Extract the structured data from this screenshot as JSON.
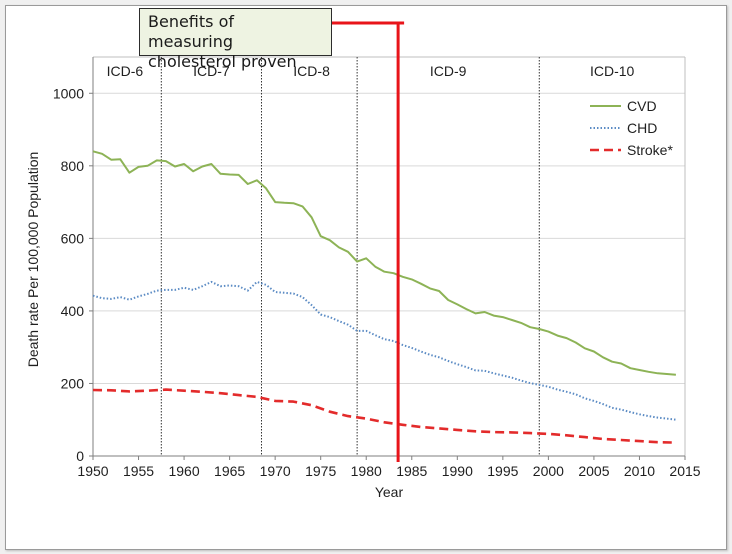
{
  "chart_data": {
    "type": "line",
    "title": "",
    "xlabel": "Year",
    "ylabel": "Death rate Per 100,000 Population",
    "xlim": [
      1950,
      2015
    ],
    "ylim": [
      0,
      1100
    ],
    "xticks": [
      "1950",
      "1955",
      "1960",
      "1965",
      "1970",
      "1975",
      "1980",
      "1985",
      "1990",
      "1995",
      "2000",
      "2005",
      "2010",
      "2015"
    ],
    "yticks": [
      "0",
      "200",
      "400",
      "600",
      "800",
      "1000"
    ],
    "grid": "horizontal",
    "legend_position": "top-right",
    "series": [
      {
        "name": "CVD",
        "color": "#8db356",
        "style": "solid",
        "points": [
          [
            1950,
            840
          ],
          [
            1951,
            833
          ],
          [
            1952,
            817
          ],
          [
            1953,
            818
          ],
          [
            1954,
            781
          ],
          [
            1955,
            797
          ],
          [
            1956,
            800
          ],
          [
            1957,
            815
          ],
          [
            1958,
            813
          ],
          [
            1959,
            798
          ],
          [
            1960,
            805
          ],
          [
            1961,
            785
          ],
          [
            1962,
            798
          ],
          [
            1963,
            805
          ],
          [
            1964,
            778
          ],
          [
            1965,
            776
          ],
          [
            1966,
            775
          ],
          [
            1967,
            750
          ],
          [
            1968,
            760
          ],
          [
            1969,
            738
          ],
          [
            1970,
            700
          ],
          [
            1971,
            698
          ],
          [
            1972,
            697
          ],
          [
            1973,
            688
          ],
          [
            1974,
            658
          ],
          [
            1975,
            606
          ],
          [
            1976,
            595
          ],
          [
            1977,
            575
          ],
          [
            1978,
            563
          ],
          [
            1979,
            536
          ],
          [
            1980,
            545
          ],
          [
            1981,
            522
          ],
          [
            1982,
            508
          ],
          [
            1983,
            504
          ],
          [
            1984,
            494
          ],
          [
            1985,
            487
          ],
          [
            1986,
            475
          ],
          [
            1987,
            462
          ],
          [
            1988,
            455
          ],
          [
            1989,
            430
          ],
          [
            1990,
            418
          ],
          [
            1991,
            405
          ],
          [
            1992,
            393
          ],
          [
            1993,
            397
          ],
          [
            1994,
            387
          ],
          [
            1995,
            383
          ],
          [
            1996,
            375
          ],
          [
            1997,
            367
          ],
          [
            1998,
            355
          ],
          [
            1999,
            350
          ],
          [
            2000,
            343
          ],
          [
            2001,
            332
          ],
          [
            2002,
            325
          ],
          [
            2003,
            313
          ],
          [
            2004,
            297
          ],
          [
            2005,
            288
          ],
          [
            2006,
            272
          ],
          [
            2007,
            260
          ],
          [
            2008,
            255
          ],
          [
            2009,
            242
          ],
          [
            2010,
            237
          ],
          [
            2011,
            232
          ],
          [
            2012,
            228
          ],
          [
            2013,
            226
          ],
          [
            2014,
            224
          ]
        ]
      },
      {
        "name": "CHD",
        "color": "#5b8bc4",
        "style": "dotted",
        "points": [
          [
            1950,
            442
          ],
          [
            1951,
            435
          ],
          [
            1952,
            433
          ],
          [
            1953,
            438
          ],
          [
            1954,
            431
          ],
          [
            1955,
            440
          ],
          [
            1956,
            447
          ],
          [
            1957,
            456
          ],
          [
            1958,
            458
          ],
          [
            1959,
            458
          ],
          [
            1960,
            464
          ],
          [
            1961,
            458
          ],
          [
            1962,
            468
          ],
          [
            1963,
            480
          ],
          [
            1964,
            468
          ],
          [
            1965,
            470
          ],
          [
            1966,
            468
          ],
          [
            1967,
            456
          ],
          [
            1968,
            480
          ],
          [
            1969,
            472
          ],
          [
            1970,
            452
          ],
          [
            1971,
            450
          ],
          [
            1972,
            448
          ],
          [
            1973,
            438
          ],
          [
            1974,
            416
          ],
          [
            1975,
            390
          ],
          [
            1976,
            383
          ],
          [
            1977,
            372
          ],
          [
            1978,
            362
          ],
          [
            1979,
            345
          ],
          [
            1980,
            345
          ],
          [
            1981,
            333
          ],
          [
            1982,
            322
          ],
          [
            1983,
            317
          ],
          [
            1984,
            306
          ],
          [
            1985,
            298
          ],
          [
            1986,
            288
          ],
          [
            1987,
            279
          ],
          [
            1988,
            272
          ],
          [
            1989,
            262
          ],
          [
            1990,
            253
          ],
          [
            1991,
            245
          ],
          [
            1992,
            236
          ],
          [
            1993,
            235
          ],
          [
            1994,
            228
          ],
          [
            1995,
            222
          ],
          [
            1996,
            216
          ],
          [
            1997,
            208
          ],
          [
            1998,
            201
          ],
          [
            1999,
            196
          ],
          [
            2000,
            191
          ],
          [
            2001,
            183
          ],
          [
            2002,
            177
          ],
          [
            2003,
            170
          ],
          [
            2004,
            159
          ],
          [
            2005,
            152
          ],
          [
            2006,
            143
          ],
          [
            2007,
            133
          ],
          [
            2008,
            128
          ],
          [
            2009,
            121
          ],
          [
            2010,
            115
          ],
          [
            2011,
            110
          ],
          [
            2012,
            106
          ],
          [
            2013,
            103
          ],
          [
            2014,
            100
          ]
        ]
      },
      {
        "name": "Stroke*",
        "color": "#e32b2b",
        "style": "dashed",
        "points": [
          [
            1950,
            182
          ],
          [
            1952,
            181
          ],
          [
            1954,
            178
          ],
          [
            1956,
            180
          ],
          [
            1958,
            183
          ],
          [
            1960,
            180
          ],
          [
            1962,
            177
          ],
          [
            1964,
            173
          ],
          [
            1966,
            168
          ],
          [
            1968,
            163
          ],
          [
            1970,
            152
          ],
          [
            1972,
            150
          ],
          [
            1974,
            140
          ],
          [
            1976,
            122
          ],
          [
            1978,
            110
          ],
          [
            1980,
            103
          ],
          [
            1982,
            93
          ],
          [
            1984,
            86
          ],
          [
            1986,
            80
          ],
          [
            1988,
            76
          ],
          [
            1990,
            72
          ],
          [
            1992,
            68
          ],
          [
            1994,
            66
          ],
          [
            1996,
            65
          ],
          [
            1998,
            63
          ],
          [
            2000,
            61
          ],
          [
            2002,
            57
          ],
          [
            2004,
            52
          ],
          [
            2006,
            47
          ],
          [
            2008,
            44
          ],
          [
            2010,
            41
          ],
          [
            2012,
            38
          ],
          [
            2014,
            37
          ]
        ]
      }
    ],
    "icd_boundaries": [
      1957.5,
      1968.5,
      1979.0,
      1999.0
    ],
    "icd_labels": [
      {
        "label": "ICD-6",
        "x": 1953.5
      },
      {
        "label": "ICD-7",
        "x": 1963.0
      },
      {
        "label": "ICD-8",
        "x": 1974.0
      },
      {
        "label": "ICD-9",
        "x": 1989.0
      },
      {
        "label": "ICD-10",
        "x": 2007.0
      }
    ],
    "annotation": {
      "text": "Benefits of measuring\ncholesterol proven",
      "year": 1983.5,
      "color": "#e8141a"
    }
  }
}
